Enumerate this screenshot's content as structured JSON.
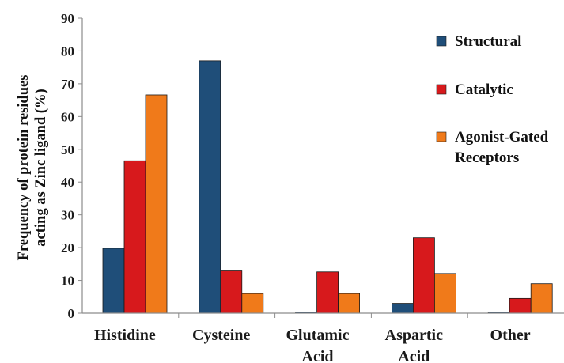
{
  "chart_data": {
    "type": "bar",
    "ylabel": [
      "Frequency of protein residues",
      "acting as Zinc ligand (%)"
    ],
    "ylim": [
      0,
      90
    ],
    "yticks": [
      0,
      10,
      20,
      30,
      40,
      50,
      60,
      70,
      80,
      90
    ],
    "categories": [
      [
        "Histidine"
      ],
      [
        "Cysteine"
      ],
      [
        "Glutamic",
        "Acid"
      ],
      [
        "Aspartic",
        "Acid"
      ],
      [
        "Other"
      ]
    ],
    "series": [
      {
        "name": "Structural",
        "color": "#1f4e79",
        "values": [
          19.8,
          77,
          0.3,
          3,
          0.3
        ]
      },
      {
        "name": "Catalytic",
        "color": "#d7191c",
        "values": [
          46.5,
          12.9,
          12.6,
          23,
          4.5
        ]
      },
      {
        "name": "Agonist-Gated Receptors",
        "legend_lines": [
          "Agonist-Gated",
          "Receptors"
        ],
        "color": "#f07a1a",
        "values": [
          66.6,
          6,
          6,
          12.1,
          9
        ]
      }
    ],
    "legend_position": "right",
    "grid": false
  }
}
